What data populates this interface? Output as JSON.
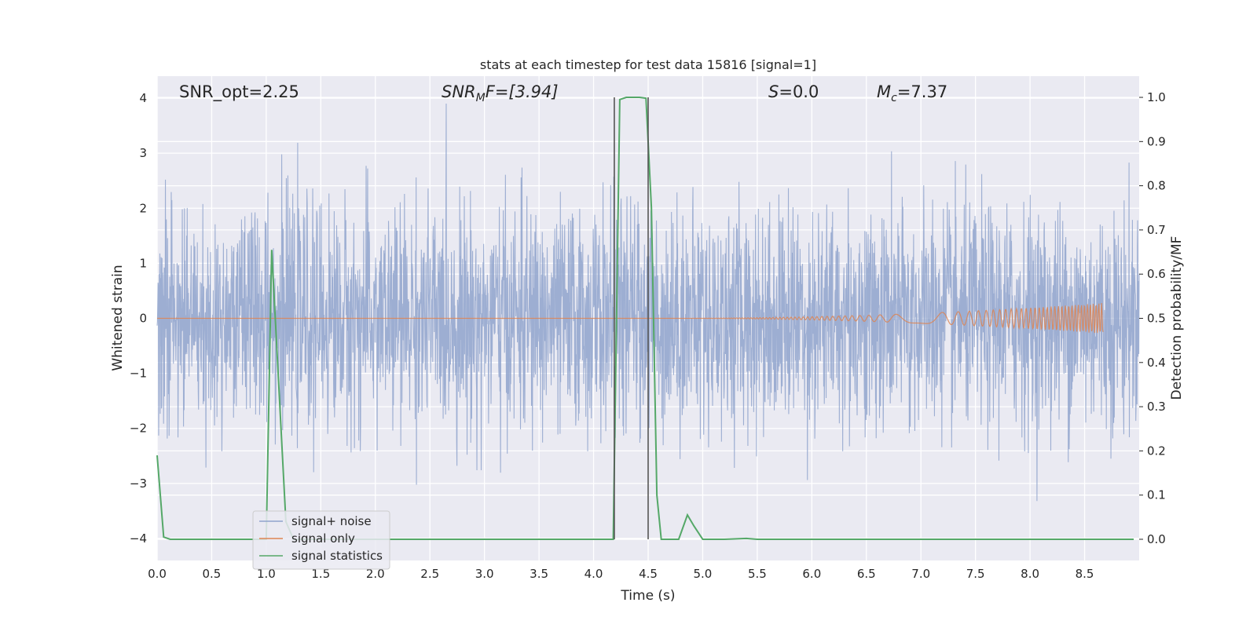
{
  "chart_data": {
    "type": "line",
    "title": "stats at each timestep for test data 15816 [signal=1]",
    "xlabel": "Time (s)",
    "ylabel_left": "Whitened strain",
    "ylabel_right": "Detection probability/MF",
    "xlim": [
      0.0,
      9.0
    ],
    "ylim_left": [
      -4.4,
      4.4
    ],
    "ylim_right": [
      -0.048,
      1.048
    ],
    "x_ticks": [
      "0.0",
      "0.5",
      "1.0",
      "1.5",
      "2.0",
      "2.5",
      "3.0",
      "3.5",
      "4.0",
      "4.5",
      "5.0",
      "5.5",
      "6.0",
      "6.5",
      "7.0",
      "7.5",
      "8.0",
      "8.5"
    ],
    "y_left_ticks": [
      "−4",
      "−3",
      "−2",
      "−1",
      "0",
      "1",
      "2",
      "3",
      "4"
    ],
    "y_right_ticks": [
      "0.0",
      "0.1",
      "0.2",
      "0.3",
      "0.4",
      "0.5",
      "0.6",
      "0.7",
      "0.8",
      "0.9",
      "1.0"
    ],
    "grid": true,
    "legend_position": "lower-left",
    "annotations": {
      "snr_opt": "SNR_opt=2.25",
      "snr_mf_main": "SNR",
      "snr_mf_sub": "M",
      "snr_mf_rest": "F=[3.94]",
      "s_main": "S",
      "s_rest": "=0.0",
      "mc_main": "M",
      "mc_sub": "c",
      "mc_rest": "=7.37"
    },
    "series": [
      {
        "name": "signal+ noise",
        "color": "#8fa3cc",
        "description_values": "whitened strain noise, approx range -4.0 to 4.0",
        "envelope": {
          "x_start": 0.0,
          "x_end": 9.0,
          "typical_amplitude": 1.6,
          "peak_amplitude": 3.6
        }
      },
      {
        "name": "signal only",
        "color": "#dd8452",
        "chirp": {
          "x_start": 4.5,
          "x_end": 8.67,
          "amplitude_end": 0.28
        }
      },
      {
        "name": "signal statistics",
        "color": "#55a868",
        "x": [
          0.0,
          0.06,
          0.12,
          0.2,
          1.0,
          1.05,
          1.18,
          1.25,
          4.0,
          4.18,
          4.24,
          4.3,
          4.35,
          4.42,
          4.48,
          4.53,
          4.58,
          4.62,
          4.7,
          4.78,
          4.86,
          4.92,
          5.0,
          5.2,
          5.4,
          5.5,
          6.0,
          7.0,
          8.0,
          8.95
        ],
        "y": [
          0.19,
          0.005,
          0.0,
          0.0,
          0.0,
          0.655,
          0.04,
          0.0,
          0.0,
          0.0,
          0.995,
          1.0,
          1.0,
          1.0,
          0.998,
          0.75,
          0.1,
          0.0,
          0.0,
          0.0,
          0.055,
          0.03,
          0.0,
          0.0,
          0.002,
          0.0,
          0.0,
          0.0,
          0.0,
          0.0
        ]
      }
    ],
    "vlines": [
      {
        "x": 4.19,
        "color": "#555555",
        "y_range": [
          0.0,
          1.0
        ]
      },
      {
        "x": 4.5,
        "color": "#555555",
        "y_range": [
          0.0,
          1.0
        ]
      }
    ]
  }
}
